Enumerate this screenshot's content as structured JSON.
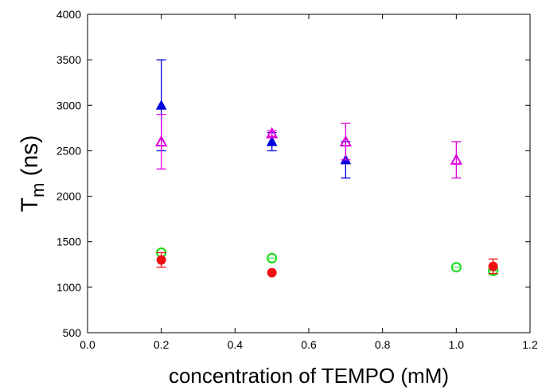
{
  "chart_data": {
    "type": "scatter",
    "xlabel": "concentration of TEMPO (mM)",
    "ylabel": {
      "main": "T",
      "subscript": "m",
      "unit": " (ns)"
    },
    "xlim": [
      0.0,
      1.2
    ],
    "ylim": [
      500,
      4000
    ],
    "xticks": [
      "0.0",
      "0.2",
      "0.4",
      "0.6",
      "0.8",
      "1.0",
      "1.2"
    ],
    "yticks": [
      "500",
      "1000",
      "1500",
      "2000",
      "2500",
      "3000",
      "3500",
      "4000"
    ],
    "grid": false,
    "series": [
      {
        "marker": "triangle-filled",
        "color": "#0000e0",
        "points": [
          {
            "x": 0.2,
            "y": 3000,
            "err": 500
          },
          {
            "x": 0.5,
            "y": 2600,
            "err": 100
          },
          {
            "x": 0.7,
            "y": 2400,
            "err": 200
          }
        ]
      },
      {
        "marker": "triangle-open",
        "color": "#e000e0",
        "points": [
          {
            "x": 0.2,
            "y": 2600,
            "err": 300
          },
          {
            "x": 0.5,
            "y": 2690,
            "err": 30
          },
          {
            "x": 0.7,
            "y": 2600,
            "err": 200
          },
          {
            "x": 1.0,
            "y": 2400,
            "err": 200
          }
        ]
      },
      {
        "marker": "circle-open",
        "color": "#22dd22",
        "points": [
          {
            "x": 0.2,
            "y": 1380,
            "err": 0
          },
          {
            "x": 0.5,
            "y": 1320,
            "err": 0
          },
          {
            "x": 1.0,
            "y": 1220,
            "err": 0
          },
          {
            "x": 1.1,
            "y": 1180,
            "err": 40
          }
        ]
      },
      {
        "marker": "circle-filled",
        "color": "#ee1111",
        "points": [
          {
            "x": 0.2,
            "y": 1300,
            "err": 80
          },
          {
            "x": 0.5,
            "y": 1160,
            "err": 0
          },
          {
            "x": 1.1,
            "y": 1230,
            "err": 80
          }
        ]
      }
    ]
  }
}
